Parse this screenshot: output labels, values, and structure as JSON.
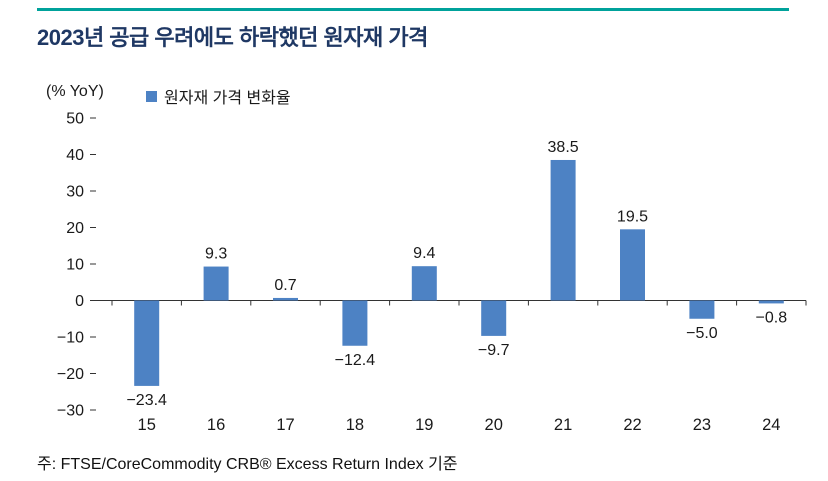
{
  "colors": {
    "teal_rule": "#00A29B",
    "title": "#1F3864",
    "bar": "#4D82C4",
    "axis": "#333333",
    "text": "#1a1a1a"
  },
  "header": {
    "title": "2023년 공급 우려에도 하락했던 원자재 가격"
  },
  "chart_data": {
    "type": "bar",
    "unit_label": "(% YoY)",
    "legend": [
      {
        "label": "원자재 가격 변화율",
        "color": "#4D82C4"
      }
    ],
    "categories": [
      "15",
      "16",
      "17",
      "18",
      "19",
      "20",
      "21",
      "22",
      "23",
      "24"
    ],
    "values": [
      -23.4,
      9.3,
      0.7,
      -12.4,
      9.4,
      -9.7,
      38.5,
      19.5,
      -5.0,
      -0.8
    ],
    "value_labels": [
      "−23.4",
      "9.3",
      "0.7",
      "−12.4",
      "9.4",
      "−9.7",
      "38.5",
      "19.5",
      "−5.0",
      "−0.8"
    ],
    "ylim": [
      -30,
      50
    ],
    "yticks": [
      {
        "v": 50,
        "label": "50"
      },
      {
        "v": 40,
        "label": "40"
      },
      {
        "v": 30,
        "label": "30"
      },
      {
        "v": 20,
        "label": "20"
      },
      {
        "v": 10,
        "label": "10"
      },
      {
        "v": 0,
        "label": "0"
      },
      {
        "v": -10,
        "label": "−10"
      },
      {
        "v": -20,
        "label": "−20"
      },
      {
        "v": -30,
        "label": "−30"
      }
    ],
    "grid": false,
    "legend_position": "top"
  },
  "footer": {
    "note": "주: FTSE/CoreCommodity CRB® Excess Return Index 기준"
  }
}
